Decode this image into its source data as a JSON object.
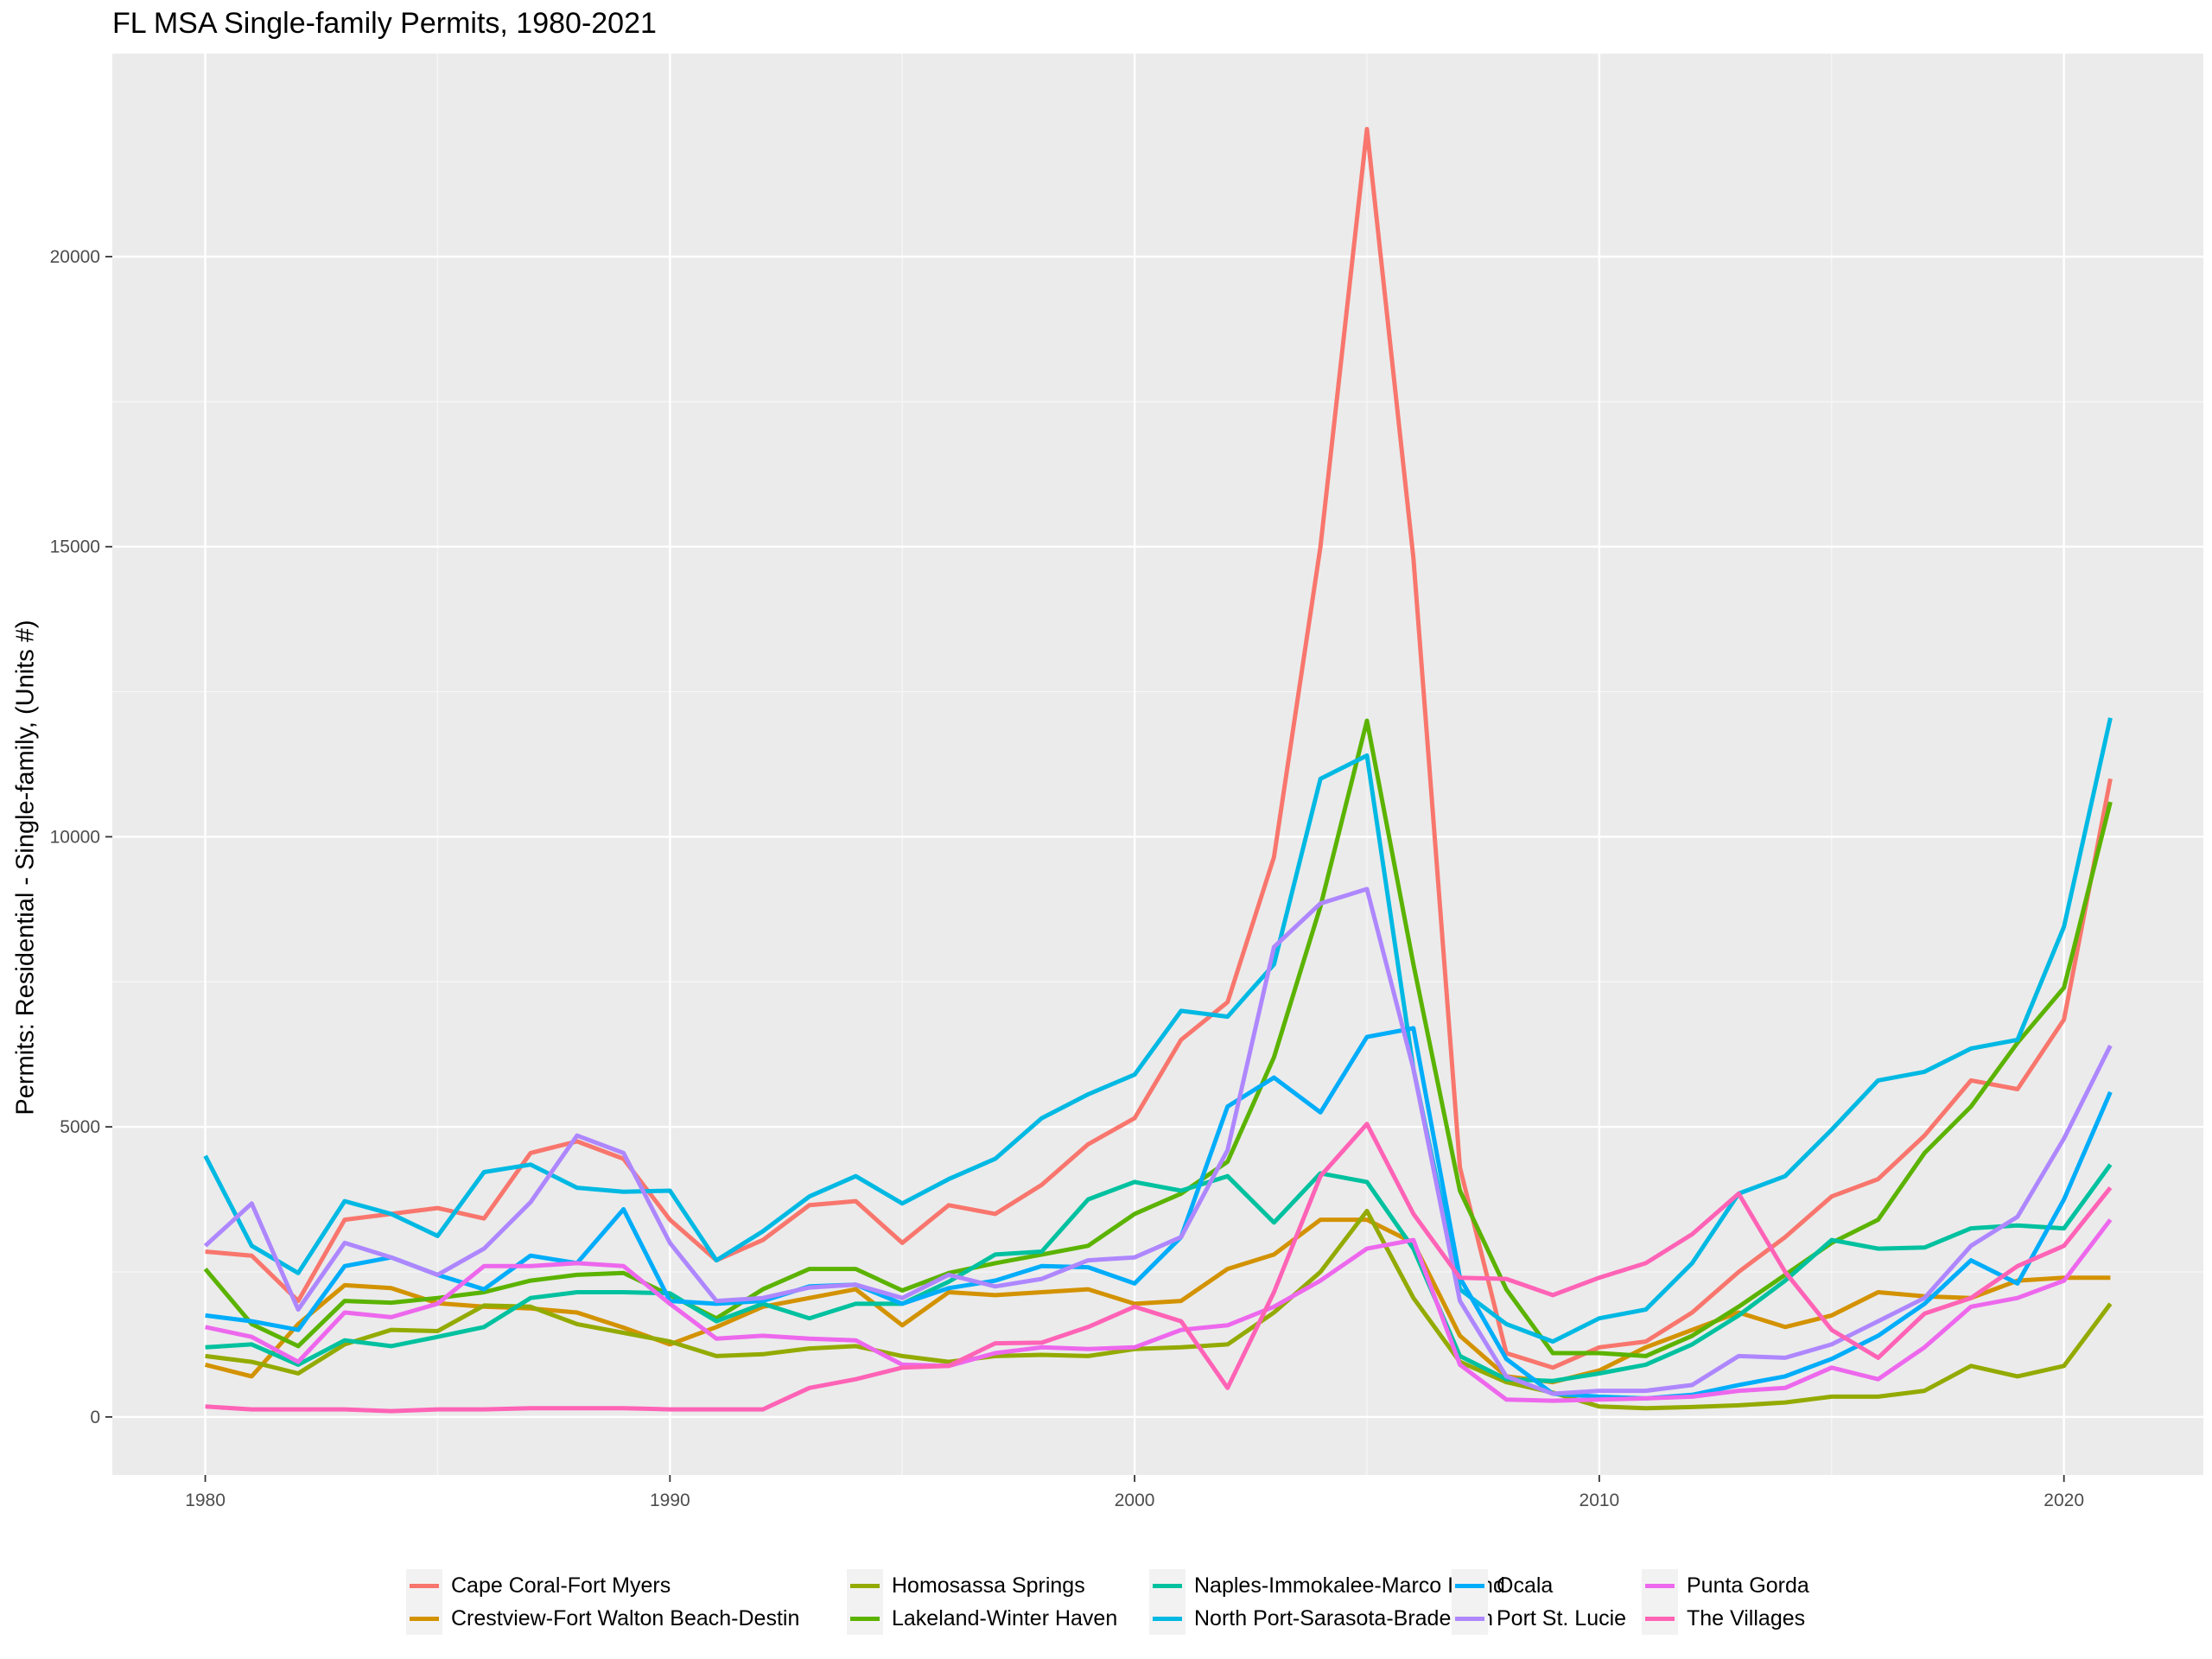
{
  "chart_data": {
    "type": "line",
    "title": "FL MSA Single-family Permits, 1980-2021",
    "xlabel": "",
    "ylabel": "Permits: Residential - Single-family, (Units #)",
    "xlim": [
      1978.0,
      2023.0
    ],
    "ylim": [
      -1000,
      23500
    ],
    "x_ticks": [
      1980,
      1990,
      2000,
      2010,
      2020
    ],
    "y_ticks": [
      0,
      5000,
      10000,
      15000,
      20000
    ],
    "grid": true,
    "legend_position": "bottom",
    "x": [
      1980,
      1981,
      1982,
      1983,
      1984,
      1985,
      1986,
      1987,
      1988,
      1989,
      1990,
      1991,
      1992,
      1993,
      1994,
      1995,
      1996,
      1997,
      1998,
      1999,
      2000,
      2001,
      2002,
      2003,
      2004,
      2005,
      2006,
      2007,
      2008,
      2009,
      2010,
      2011,
      2012,
      2013,
      2014,
      2015,
      2016,
      2017,
      2018,
      2019,
      2020,
      2021
    ],
    "series": [
      {
        "name": "Cape Coral-Fort Myers",
        "color": "#F8766D",
        "values": [
          2850,
          2780,
          2000,
          3400,
          3500,
          3600,
          3420,
          4550,
          4750,
          4450,
          3400,
          2700,
          3050,
          3650,
          3720,
          3000,
          3650,
          3500,
          4000,
          4700,
          5150,
          6500,
          7150,
          9650,
          15000,
          22200,
          14800,
          4300,
          1100,
          850,
          1200,
          1300,
          1800,
          2500,
          3100,
          3800,
          4100,
          4850,
          5800,
          5650,
          6850,
          11000
        ]
      },
      {
        "name": "Crestview-Fort Walton Beach-Destin",
        "color": "#D39200",
        "values": [
          900,
          700,
          1600,
          2270,
          2220,
          1960,
          1900,
          1870,
          1800,
          1540,
          1250,
          1550,
          1900,
          2050,
          2200,
          1580,
          2150,
          2100,
          2150,
          2200,
          1950,
          2000,
          2550,
          2800,
          3400,
          3400,
          3000,
          1400,
          700,
          600,
          800,
          1200,
          1500,
          1800,
          1550,
          1750,
          2150,
          2080,
          2050,
          2350,
          2400,
          2400
        ]
      },
      {
        "name": "Homosassa Springs",
        "color": "#93AA00",
        "values": [
          1050,
          950,
          750,
          1250,
          1500,
          1480,
          1920,
          1900,
          1600,
          1450,
          1300,
          1050,
          1080,
          1180,
          1220,
          1050,
          950,
          1050,
          1070,
          1050,
          1170,
          1200,
          1250,
          1800,
          2500,
          3550,
          2050,
          950,
          600,
          420,
          180,
          150,
          170,
          200,
          250,
          350,
          350,
          450,
          880,
          700,
          880,
          1950
        ]
      },
      {
        "name": "Lakeland-Winter Haven",
        "color": "#5BB300",
        "values": [
          2550,
          1600,
          1220,
          2000,
          1970,
          2050,
          2150,
          2350,
          2450,
          2480,
          2100,
          1700,
          2200,
          2550,
          2550,
          2180,
          2480,
          2650,
          2800,
          2950,
          3500,
          3850,
          4400,
          6200,
          8800,
          12000,
          7800,
          3900,
          2200,
          1100,
          1100,
          1050,
          1400,
          1900,
          2450,
          3000,
          3400,
          4550,
          5350,
          6450,
          7400,
          10600
        ]
      },
      {
        "name": "Naples-Immokalee-Marco Island",
        "color": "#00C19F",
        "values": [
          1200,
          1250,
          900,
          1320,
          1220,
          1380,
          1550,
          2050,
          2150,
          2150,
          2130,
          1650,
          1950,
          1700,
          1950,
          1950,
          2330,
          2800,
          2850,
          3750,
          4050,
          3900,
          4150,
          3350,
          4200,
          4050,
          2900,
          1050,
          650,
          620,
          750,
          900,
          1250,
          1750,
          2350,
          3050,
          2900,
          2920,
          3250,
          3300,
          3250,
          4350
        ]
      },
      {
        "name": "North Port-Sarasota-Bradenton",
        "color": "#00B9E3",
        "values": [
          4500,
          2950,
          2480,
          3720,
          3500,
          3120,
          4220,
          4350,
          3950,
          3880,
          3900,
          2700,
          3200,
          3800,
          4150,
          3680,
          4100,
          4450,
          5150,
          5560,
          5900,
          7000,
          6900,
          7800,
          11000,
          11400,
          6000,
          2200,
          1600,
          1300,
          1700,
          1850,
          2650,
          3850,
          4150,
          4950,
          5800,
          5950,
          6350,
          6500,
          8450,
          12050
        ]
      },
      {
        "name": "Ocala",
        "color": "#00ADFA",
        "values": [
          1750,
          1650,
          1500,
          2600,
          2750,
          2450,
          2200,
          2780,
          2650,
          3580,
          2000,
          1950,
          2000,
          2250,
          2280,
          1950,
          2220,
          2350,
          2600,
          2580,
          2300,
          3100,
          5350,
          5850,
          5250,
          6550,
          6700,
          2400,
          1000,
          400,
          350,
          320,
          380,
          550,
          700,
          1000,
          1400,
          1950,
          2700,
          2300,
          3750,
          5600
        ]
      },
      {
        "name": "Port St. Lucie",
        "color": "#AE87FF",
        "values": [
          2950,
          3680,
          1850,
          3000,
          2750,
          2450,
          2900,
          3700,
          4850,
          4550,
          3000,
          2000,
          2050,
          2230,
          2280,
          2050,
          2450,
          2250,
          2380,
          2700,
          2750,
          3100,
          4600,
          8100,
          8850,
          9100,
          6000,
          2000,
          700,
          400,
          450,
          450,
          550,
          1050,
          1020,
          1250,
          1650,
          2050,
          2950,
          3450,
          4800,
          6400
        ]
      },
      {
        "name": "Punta Gorda",
        "color": "#ED68ED",
        "values": [
          1550,
          1380,
          950,
          1800,
          1720,
          1950,
          2600,
          2600,
          2650,
          2600,
          1950,
          1350,
          1400,
          1350,
          1320,
          900,
          880,
          1100,
          1200,
          1170,
          1200,
          1500,
          1580,
          1900,
          2350,
          2900,
          3050,
          900,
          300,
          280,
          300,
          320,
          350,
          450,
          500,
          850,
          650,
          1200,
          1900,
          2050,
          2350,
          3400
        ]
      },
      {
        "name": "The Villages",
        "color": "#FF63B6",
        "values": [
          180,
          130,
          130,
          130,
          100,
          130,
          130,
          150,
          150,
          150,
          130,
          130,
          130,
          500,
          650,
          850,
          880,
          1270,
          1280,
          1550,
          1900,
          1650,
          500,
          2150,
          4150,
          5050,
          3500,
          2400,
          2380,
          2100,
          2400,
          2650,
          3150,
          3850,
          2500,
          1500,
          1020,
          1780,
          2050,
          2600,
          2950,
          3950
        ]
      }
    ]
  }
}
